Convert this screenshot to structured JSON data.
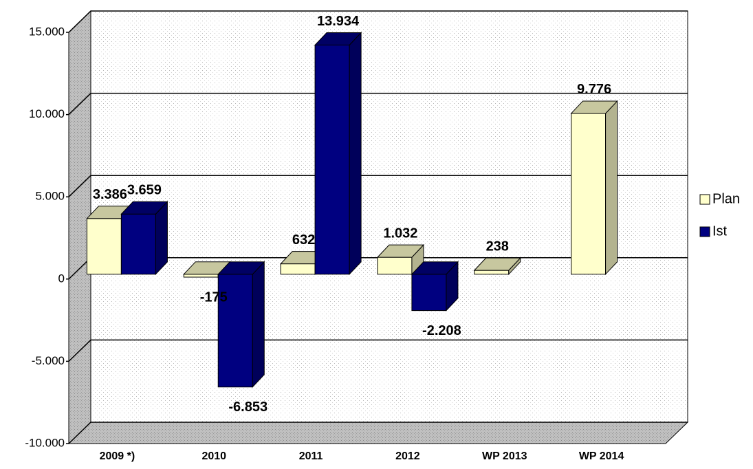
{
  "chart_data": {
    "type": "bar3d",
    "categories": [
      "2009 *)",
      "2010",
      "2011",
      "2012",
      "WP 2013",
      "WP 2014"
    ],
    "series": [
      {
        "name": "Plan",
        "color": "#ffffcc",
        "values": [
          3386,
          -175,
          632,
          1032,
          238,
          9776
        ],
        "value_labels": [
          "3.386",
          "-175",
          "632",
          "1.032",
          "238",
          "9.776"
        ]
      },
      {
        "name": "Ist",
        "color": "#000080",
        "values": [
          3659,
          -6853,
          13934,
          -2208,
          null,
          null
        ],
        "value_labels": [
          "3.659",
          "-6.853",
          "13.934",
          "-2.208",
          null,
          null
        ]
      }
    ],
    "ylim": [
      -10000,
      15000
    ],
    "yticks": [
      {
        "value": -10000,
        "label": "-10.000"
      },
      {
        "value": -5000,
        "label": "-5.000"
      },
      0,
      {
        "value": 5000,
        "label": "5.000"
      },
      {
        "value": 10000,
        "label": "10.000"
      },
      {
        "value": 15000,
        "label": "15.000"
      }
    ],
    "grid": true,
    "legend": "right"
  }
}
